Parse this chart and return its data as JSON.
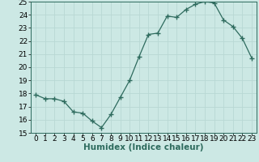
{
  "xlabel": "Humidex (Indice chaleur)",
  "x": [
    0,
    1,
    2,
    3,
    4,
    5,
    6,
    7,
    8,
    9,
    10,
    11,
    12,
    13,
    14,
    15,
    16,
    17,
    18,
    19,
    20,
    21,
    22,
    23
  ],
  "y": [
    17.9,
    17.6,
    17.6,
    17.4,
    16.6,
    16.5,
    15.9,
    15.4,
    16.4,
    17.7,
    19.0,
    20.8,
    22.5,
    22.6,
    23.9,
    23.8,
    24.4,
    24.8,
    25.0,
    24.9,
    23.6,
    23.1,
    22.2,
    20.7
  ],
  "line_color": "#2e6b5e",
  "marker": "+",
  "marker_size": 4,
  "bg_color": "#cce8e4",
  "grid_color": "#b8d8d4",
  "ylim": [
    15,
    25
  ],
  "xlim": [
    -0.5,
    23.5
  ],
  "yticks": [
    15,
    16,
    17,
    18,
    19,
    20,
    21,
    22,
    23,
    24,
    25
  ],
  "xticks": [
    0,
    1,
    2,
    3,
    4,
    5,
    6,
    7,
    8,
    9,
    10,
    11,
    12,
    13,
    14,
    15,
    16,
    17,
    18,
    19,
    20,
    21,
    22,
    23
  ],
  "xlabel_fontsize": 7.5,
  "tick_fontsize": 6.5
}
